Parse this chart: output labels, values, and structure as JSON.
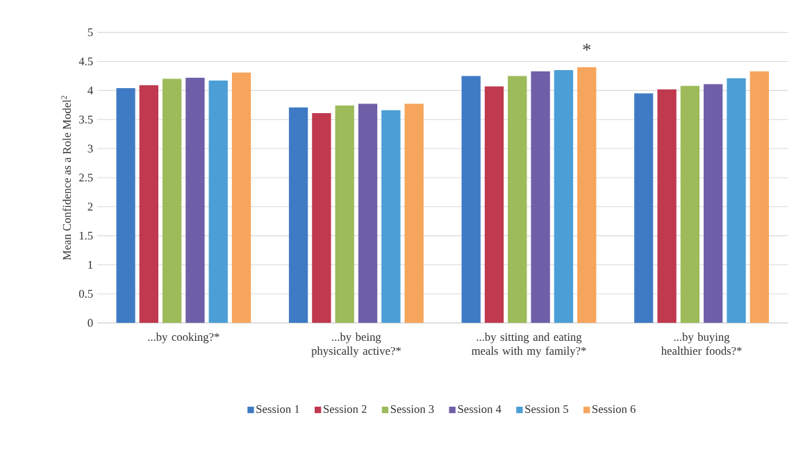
{
  "chart_data": {
    "type": "bar",
    "ylabel": "Mean Confidence as a Role Model$^{2}$",
    "categories": [
      "...by cooking?*",
      "...by being physically active?*",
      "...by sitting and eating meals with my family?*",
      "...by buying healthier foods?*"
    ],
    "series": [
      {
        "name": "Session 1",
        "color": "#3f7bc5",
        "values": [
          4.04,
          3.71,
          4.25,
          3.95
        ]
      },
      {
        "name": "Session 2",
        "color": "#c0394f",
        "values": [
          4.09,
          3.61,
          4.07,
          4.02
        ]
      },
      {
        "name": "Session 3",
        "color": "#9dbb5a",
        "values": [
          4.2,
          3.74,
          4.25,
          4.08
        ]
      },
      {
        "name": "Session 4",
        "color": "#6f5fa8",
        "values": [
          4.22,
          3.77,
          4.33,
          4.11
        ]
      },
      {
        "name": "Session 5",
        "color": "#4b9fd6",
        "values": [
          4.17,
          3.66,
          4.35,
          4.21
        ]
      },
      {
        "name": "Session  6",
        "color": "#f6a55d",
        "values": [
          4.31,
          3.77,
          4.4,
          4.33
        ]
      }
    ],
    "ylim": [
      0,
      5
    ],
    "yticks": [
      0,
      0.5,
      1,
      1.5,
      2,
      2.5,
      3,
      3.5,
      4,
      4.5,
      5
    ],
    "grid": "y",
    "legend": "bottom",
    "annotations": [
      "*"
    ]
  }
}
